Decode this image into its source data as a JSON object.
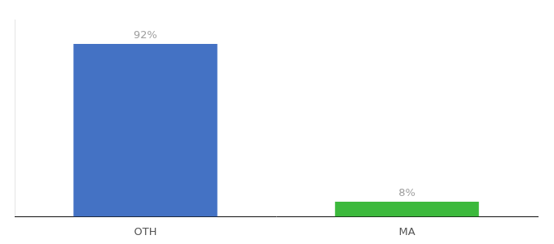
{
  "chart_data": {
    "type": "bar",
    "categories": [
      "OTH",
      "MA"
    ],
    "values": [
      92,
      8
    ],
    "value_labels": [
      "92%",
      "8%"
    ],
    "colors": [
      "#4472c4",
      "#3cb93c"
    ],
    "ylim": [
      0,
      105
    ],
    "grid": false,
    "data_labels": true,
    "tick_labels": "x"
  }
}
